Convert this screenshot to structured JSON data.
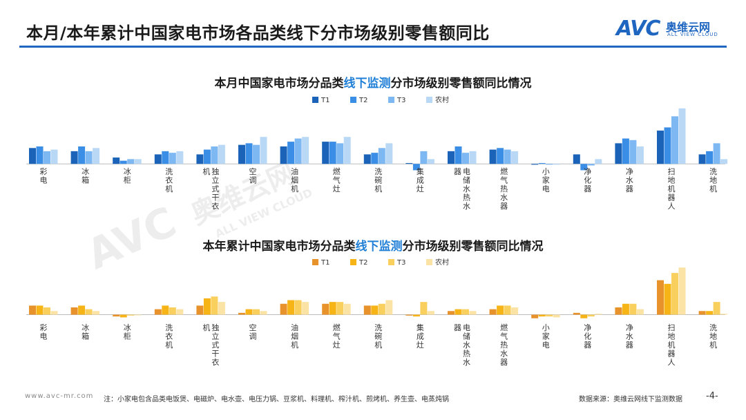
{
  "header": {
    "title": "本月/本年累计中国家电市场各品类线下分市场级别零售额同比",
    "logo_mark": "AVC",
    "logo_cn": "奥维云网",
    "logo_en": "ALL VIEW CLOUD"
  },
  "watermark": {
    "mark": "AVC",
    "cn": "奥维云网",
    "en": "ALL VIEW CLOUD"
  },
  "colors": {
    "brand": "#1f66c1",
    "chart1": [
      "#1a63b8",
      "#3b8ee6",
      "#7db8f2",
      "#b9d8f5"
    ],
    "chart2": [
      "#e8922b",
      "#f7b417",
      "#f9cf5e",
      "#fbe3a5"
    ]
  },
  "chart_data": [
    {
      "type": "bar",
      "title_pre": "本月中国家电市场分品类",
      "title_hl": "线下监测",
      "title_post": "分市场级别零售额同比情况",
      "categories": [
        "彩电",
        "冰箱",
        "冰柜",
        "洗衣机",
        "独立式干衣机",
        "空调",
        "油烟机",
        "燃气灶",
        "洗碗机",
        "集成灶",
        "电储水热水器",
        "燃气热水器",
        "小家电",
        "净化器",
        "净水器",
        "扫地机器人",
        "洗地机"
      ],
      "label_columns": [
        [
          "彩电"
        ],
        [
          "冰箱"
        ],
        [
          "冰柜"
        ],
        [
          "洗衣机"
        ],
        [
          "机",
          "独立式干衣"
        ],
        [
          "空调"
        ],
        [
          "油烟机"
        ],
        [
          "燃气灶"
        ],
        [
          "洗碗机"
        ],
        [
          "集成灶"
        ],
        [
          "器",
          "电储水热水"
        ],
        [
          "燃气热水器"
        ],
        [
          "小家电"
        ],
        [
          "净化器"
        ],
        [
          "净水器"
        ],
        [
          "扫地机器人"
        ],
        [
          "洗地机"
        ]
      ],
      "series": [
        {
          "name": "T1",
          "values": [
            10,
            8,
            4,
            6,
            6,
            12,
            11,
            14,
            6,
            0.5,
            8,
            9,
            -0.5,
            6,
            13,
            21,
            6
          ]
        },
        {
          "name": "T2",
          "values": [
            11,
            11,
            2,
            8,
            9,
            13,
            14,
            14,
            7,
            -4,
            11,
            10,
            0.5,
            -4,
            16,
            23,
            8
          ]
        },
        {
          "name": "T3",
          "values": [
            8,
            8,
            3,
            7,
            11,
            12,
            16,
            13,
            10,
            8,
            7,
            9,
            -0.5,
            -1,
            15,
            30,
            13
          ]
        },
        {
          "name": "农村",
          "values": [
            9,
            10,
            3,
            8,
            12,
            17,
            17,
            17,
            13,
            3,
            8,
            8,
            -0.5,
            3,
            11,
            35,
            3
          ]
        }
      ],
      "ylim": [
        -6,
        38
      ]
    },
    {
      "type": "bar",
      "title_pre": "本年累计中国家电市场分品类",
      "title_hl": "线下监测",
      "title_post": "分市场级别零售额同比情况",
      "categories": [
        "彩电",
        "冰箱",
        "冰柜",
        "洗衣机",
        "独立式干衣机",
        "空调",
        "油烟机",
        "燃气灶",
        "洗碗机",
        "集成灶",
        "电储水热水器",
        "燃气热水器",
        "小家电",
        "净化器",
        "净水器",
        "扫地机器人",
        "洗地机"
      ],
      "label_columns": [
        [
          "彩电"
        ],
        [
          "冰箱"
        ],
        [
          "冰柜"
        ],
        [
          "洗衣机"
        ],
        [
          "机",
          "独立式干衣"
        ],
        [
          "空调"
        ],
        [
          "油烟机"
        ],
        [
          "燃气灶"
        ],
        [
          "洗碗机"
        ],
        [
          "集成灶"
        ],
        [
          "器",
          "电储水热水"
        ],
        [
          "燃气热水器"
        ],
        [
          "小家电"
        ],
        [
          "净化器"
        ],
        [
          "净水器"
        ],
        [
          "扫地机器人"
        ],
        [
          "洗地机"
        ]
      ],
      "series": [
        {
          "name": "T1",
          "values": [
            5,
            4,
            -1,
            3,
            5,
            1,
            6,
            6,
            5,
            -0.5,
            2,
            3,
            -2,
            1,
            4,
            19,
            2
          ]
        },
        {
          "name": "T2",
          "values": [
            5,
            5,
            -1.5,
            5,
            9,
            3,
            8,
            7,
            5,
            -1,
            3,
            5,
            -1,
            -2,
            6,
            17,
            2
          ]
        },
        {
          "name": "T3",
          "values": [
            4,
            3,
            -0.5,
            4,
            10,
            3,
            8,
            7,
            6,
            7,
            3,
            5,
            -1,
            -1,
            6,
            23,
            7
          ]
        },
        {
          "name": "农村",
          "values": [
            2,
            2,
            -0.3,
            3,
            7,
            2,
            7,
            6,
            8,
            2,
            2,
            4,
            -1.5,
            0.5,
            3,
            26,
            0.5
          ]
        }
      ],
      "ylim": [
        -4,
        28
      ]
    }
  ],
  "footer": {
    "url": "www.avc-mr.com",
    "note": "注：小家电包含品类电饭煲、电磁炉、电水壶、电压力锅、豆浆机、料理机、榨汁机、煎烤机、养生壶、电蒸炖锅",
    "source": "数据来源：奥维云网线下监测数据",
    "page": "-4-"
  }
}
